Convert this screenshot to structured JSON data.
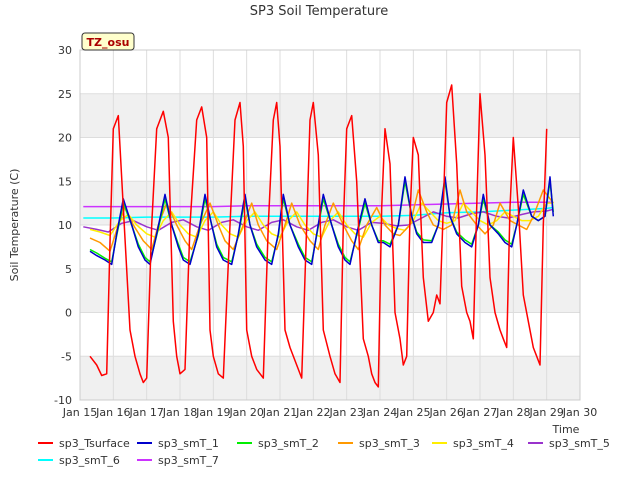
{
  "chart_data": {
    "type": "line",
    "title": "SP3 Soil Temperature",
    "xlabel": "Time",
    "ylabel": "Soil Temperature (C)",
    "annotation": "TZ_osu",
    "xlim": [
      15,
      30
    ],
    "ylim": [
      -10,
      30
    ],
    "x_ticks": [
      15,
      16,
      17,
      18,
      19,
      20,
      21,
      22,
      23,
      24,
      25,
      26,
      27,
      28,
      29,
      30
    ],
    "x_tick_labels": [
      "Jan 15",
      "Jan 16",
      "Jan 17",
      "Jan 18",
      "Jan 19",
      "Jan 20",
      "Jan 21",
      "Jan 22",
      "Jan 23",
      "Jan 24",
      "Jan 25",
      "Jan 26",
      "Jan 27",
      "Jan 28",
      "Jan 29",
      "Jan 30"
    ],
    "y_ticks": [
      -10,
      -5,
      0,
      5,
      10,
      15,
      20,
      25,
      30
    ],
    "y_tick_labels": [
      "-10",
      "-5",
      "0",
      "5",
      "10",
      "15",
      "20",
      "25",
      "30"
    ],
    "series": [
      {
        "name": "sp3_Tsurface",
        "color": "#ff0000",
        "x": [
          15.3,
          15.5,
          15.65,
          15.8,
          15.9,
          16.0,
          16.15,
          16.3,
          16.5,
          16.65,
          16.8,
          16.9,
          17.0,
          17.15,
          17.3,
          17.5,
          17.65,
          17.8,
          17.9,
          18.0,
          18.15,
          18.3,
          18.5,
          18.65,
          18.8,
          18.9,
          19.0,
          19.15,
          19.3,
          19.5,
          19.65,
          19.8,
          19.9,
          20.0,
          20.15,
          20.3,
          20.5,
          20.65,
          20.8,
          20.9,
          21.0,
          21.15,
          21.3,
          21.5,
          21.65,
          21.8,
          21.9,
          22.0,
          22.15,
          22.3,
          22.5,
          22.65,
          22.8,
          22.9,
          23.0,
          23.15,
          23.3,
          23.5,
          23.65,
          23.75,
          23.85,
          23.95,
          24.05,
          24.15,
          24.3,
          24.45,
          24.6,
          24.7,
          24.8,
          24.9,
          25.0,
          25.15,
          25.3,
          25.45,
          25.6,
          25.7,
          25.8,
          25.9,
          26.0,
          26.15,
          26.3,
          26.45,
          26.6,
          26.7,
          26.8,
          26.9,
          27.0,
          27.15,
          27.3,
          27.45,
          27.6,
          27.7,
          27.8,
          27.9,
          28.0,
          28.15,
          28.3,
          28.45,
          28.6,
          28.7,
          28.8,
          28.9,
          29.0
        ],
        "y": [
          -5,
          -6,
          -7.2,
          -7,
          8,
          21,
          22.5,
          12,
          -2,
          -5,
          -7,
          -8,
          -7.5,
          10,
          21,
          23,
          20,
          -1,
          -5,
          -7,
          -6.5,
          10,
          22,
          23.5,
          20,
          -2,
          -5,
          -7,
          -7.5,
          10,
          22,
          24,
          19,
          -2,
          -5,
          -6.5,
          -7.5,
          10,
          22,
          24,
          19,
          -2,
          -4,
          -6,
          -7.5,
          10,
          22,
          24,
          18,
          -2,
          -5,
          -7,
          -8,
          10,
          21,
          22.5,
          15,
          -3,
          -5,
          -7,
          -8,
          -8.5,
          12,
          21,
          17,
          0,
          -3,
          -6,
          -5,
          11,
          20,
          18,
          4,
          -1,
          0,
          2,
          1,
          12,
          24,
          26,
          17,
          3,
          0,
          -1,
          -3,
          12,
          25,
          18,
          4,
          0,
          -2,
          -3,
          -4,
          12,
          20,
          12,
          2,
          -1,
          -4,
          -5,
          -6,
          10,
          21
        ]
      },
      {
        "name": "sp3_smT_1",
        "color": "#0000cc",
        "x": [
          15.3,
          15.5,
          15.75,
          15.95,
          16.1,
          16.3,
          16.55,
          16.75,
          16.95,
          17.1,
          17.3,
          17.55,
          17.75,
          17.95,
          18.1,
          18.3,
          18.55,
          18.75,
          18.95,
          19.1,
          19.3,
          19.55,
          19.75,
          19.95,
          20.1,
          20.3,
          20.55,
          20.75,
          20.95,
          21.1,
          21.3,
          21.55,
          21.75,
          21.95,
          22.1,
          22.3,
          22.55,
          22.75,
          22.95,
          23.1,
          23.3,
          23.55,
          23.75,
          23.95,
          24.1,
          24.3,
          24.55,
          24.75,
          24.95,
          25.1,
          25.3,
          25.55,
          25.75,
          25.95,
          26.1,
          26.3,
          26.55,
          26.75,
          26.95,
          27.1,
          27.3,
          27.55,
          27.75,
          27.95,
          28.1,
          28.3,
          28.55,
          28.75,
          28.95,
          29.1,
          29.2
        ],
        "y": [
          7,
          6.5,
          6,
          5.5,
          9,
          13,
          10,
          7.5,
          6,
          5.5,
          9,
          13.5,
          10,
          7.5,
          6,
          5.5,
          9,
          13.5,
          10,
          7.5,
          6,
          5.5,
          9,
          13.5,
          10,
          7.5,
          6,
          5.5,
          9,
          13.5,
          10,
          7.5,
          6,
          5.5,
          9,
          13.5,
          10,
          7.5,
          6,
          5.5,
          9,
          13,
          10,
          8,
          8,
          7.5,
          10,
          15.5,
          11,
          9,
          8,
          8,
          10,
          15.5,
          11,
          9,
          8,
          7.5,
          10,
          13.5,
          10,
          9,
          8,
          7.5,
          10,
          14,
          11,
          10.5,
          11,
          15.5,
          11
        ]
      },
      {
        "name": "sp3_smT_2",
        "color": "#00ee00",
        "x": [
          15.3,
          15.5,
          15.75,
          15.95,
          16.1,
          16.3,
          16.55,
          16.75,
          16.95,
          17.1,
          17.3,
          17.55,
          17.75,
          17.95,
          18.1,
          18.3,
          18.55,
          18.75,
          18.95,
          19.1,
          19.3,
          19.55,
          19.75,
          19.95,
          20.1,
          20.3,
          20.55,
          20.75,
          20.95,
          21.1,
          21.3,
          21.55,
          21.75,
          21.95,
          22.1,
          22.3,
          22.55,
          22.75,
          22.95,
          23.1,
          23.3,
          23.55,
          23.75,
          23.95,
          24.1,
          24.3,
          24.55,
          24.75,
          24.95,
          25.1,
          25.3,
          25.55,
          25.75,
          25.95,
          26.1,
          26.3,
          26.55,
          26.75,
          26.95,
          27.1,
          27.3,
          27.55,
          27.75,
          27.95,
          28.1,
          28.3,
          28.55,
          28.75,
          28.95,
          29.1,
          29.2
        ],
        "y": [
          7.2,
          6.8,
          6.2,
          5.8,
          8.8,
          12.5,
          10,
          7.8,
          6.3,
          5.8,
          8.8,
          13,
          10,
          7.8,
          6.3,
          5.8,
          8.8,
          13,
          10,
          7.8,
          6.3,
          5.8,
          8.8,
          13,
          10,
          7.8,
          6.3,
          5.8,
          8.8,
          13,
          10,
          7.8,
          6.3,
          5.8,
          8.8,
          13,
          10,
          7.8,
          6.3,
          5.8,
          8.8,
          12.5,
          10,
          8.2,
          8.2,
          7.8,
          10,
          15,
          11,
          9.2,
          8.3,
          8.2,
          10,
          15,
          11,
          9.2,
          8.3,
          7.8,
          10,
          13,
          10,
          9.2,
          8.3,
          7.8,
          10,
          13.5,
          11,
          10.5,
          11,
          15,
          11.5
        ]
      },
      {
        "name": "sp3_smT_3",
        "color": "#ff9900",
        "x": [
          15.3,
          15.6,
          15.9,
          16.15,
          16.35,
          16.6,
          16.9,
          17.15,
          17.35,
          17.6,
          17.9,
          18.15,
          18.35,
          18.6,
          18.9,
          19.15,
          19.35,
          19.6,
          19.9,
          20.15,
          20.35,
          20.6,
          20.9,
          21.15,
          21.35,
          21.6,
          21.9,
          22.15,
          22.35,
          22.6,
          22.9,
          23.15,
          23.35,
          23.6,
          23.9,
          24.15,
          24.4,
          24.6,
          24.9,
          25.15,
          25.4,
          25.6,
          25.9,
          26.15,
          26.4,
          26.6,
          26.9,
          27.15,
          27.4,
          27.6,
          27.9,
          28.15,
          28.4,
          28.6,
          28.9,
          29.2
        ],
        "y": [
          8.5,
          8,
          7,
          10,
          12,
          10,
          8.2,
          7.2,
          10,
          12.5,
          10,
          8.2,
          7.2,
          10,
          12.5,
          10,
          8.2,
          7.2,
          10,
          12.5,
          10,
          8.2,
          7.2,
          10,
          12.5,
          10,
          8.2,
          7.2,
          10,
          12.5,
          10,
          8.2,
          7.2,
          10,
          12,
          10,
          9,
          8.8,
          10,
          14,
          11.5,
          10,
          9.5,
          10,
          14,
          11.5,
          10,
          9,
          10,
          12.5,
          10.5,
          10,
          9.5,
          11,
          14,
          12.5
        ]
      },
      {
        "name": "sp3_smT_4",
        "color": "#ffee00",
        "x": [
          15.3,
          15.6,
          15.9,
          16.2,
          16.45,
          16.7,
          17.0,
          17.25,
          17.5,
          17.75,
          18.0,
          18.25,
          18.5,
          18.75,
          19.0,
          19.25,
          19.5,
          19.75,
          20.0,
          20.25,
          20.5,
          20.75,
          21.0,
          21.25,
          21.5,
          21.75,
          22.0,
          22.25,
          22.5,
          22.75,
          23.0,
          23.25,
          23.5,
          23.75,
          24.0,
          24.25,
          24.5,
          24.75,
          25.0,
          25.25,
          25.5,
          25.75,
          26.0,
          26.25,
          26.5,
          26.75,
          27.0,
          27.25,
          27.5,
          27.75,
          28.0,
          28.25,
          28.5,
          28.75,
          29.0,
          29.2
        ],
        "y": [
          9.5,
          9.2,
          8.8,
          10.5,
          11.2,
          10,
          9,
          8.6,
          10.5,
          11.5,
          10,
          9,
          8.6,
          10.5,
          11.5,
          10,
          9,
          8.6,
          10.5,
          11.5,
          10,
          9,
          8.6,
          10.5,
          11.5,
          10,
          9,
          8.6,
          10.5,
          11.5,
          10,
          9,
          8.6,
          10.3,
          11,
          10,
          9.6,
          9.4,
          10.5,
          12.5,
          11.5,
          10.5,
          10.2,
          10.5,
          12.5,
          11.5,
          10.5,
          10,
          10.5,
          11.5,
          11,
          10.5,
          10.5,
          11,
          12.5,
          12.5
        ]
      },
      {
        "name": "sp3_smT_5",
        "color": "#9933cc",
        "x": [
          15.1,
          15.5,
          15.85,
          16.25,
          16.6,
          17.0,
          17.35,
          17.75,
          18.1,
          18.5,
          18.85,
          19.25,
          19.6,
          20.0,
          20.35,
          20.75,
          21.1,
          21.5,
          21.85,
          22.25,
          22.6,
          23.0,
          23.35,
          23.75,
          24.1,
          24.5,
          24.85,
          25.25,
          25.6,
          26.0,
          26.35,
          26.75,
          27.1,
          27.5,
          27.85,
          28.25,
          28.6,
          29.0,
          29.2
        ],
        "y": [
          9.8,
          9.5,
          9.2,
          10.2,
          10.5,
          9.8,
          9.4,
          10.3,
          10.6,
          9.8,
          9.4,
          10.3,
          10.6,
          9.8,
          9.4,
          10.3,
          10.6,
          9.8,
          9.4,
          10.3,
          10.6,
          9.8,
          9.4,
          10.3,
          10.2,
          9.9,
          10,
          10.8,
          11.5,
          11,
          10.8,
          11.3,
          11.5,
          11,
          10.8,
          11.2,
          11.5,
          11.6,
          11.8
        ]
      },
      {
        "name": "sp3_smT_6",
        "color": "#00ffff",
        "x": [
          15.1,
          16.0,
          17.0,
          18.0,
          19.0,
          20.0,
          21.0,
          22.0,
          23.0,
          24.0,
          25.0,
          26.0,
          27.0,
          28.0,
          29.0,
          29.2
        ],
        "y": [
          10.8,
          10.8,
          10.9,
          10.9,
          10.9,
          11.0,
          11.0,
          11.0,
          11.0,
          11.0,
          11.1,
          11.4,
          11.5,
          11.7,
          11.9,
          12.0
        ]
      },
      {
        "name": "sp3_smT_7",
        "color": "#cc33ff",
        "x": [
          15.1,
          16.0,
          17.0,
          18.0,
          19.0,
          20.0,
          21.0,
          22.0,
          23.0,
          24.0,
          25.0,
          26.0,
          27.0,
          28.0,
          29.0,
          29.2
        ],
        "y": [
          12.1,
          12.1,
          12.1,
          12.1,
          12.1,
          12.2,
          12.2,
          12.2,
          12.2,
          12.2,
          12.3,
          12.4,
          12.5,
          12.6,
          12.6,
          12.6
        ]
      }
    ]
  }
}
